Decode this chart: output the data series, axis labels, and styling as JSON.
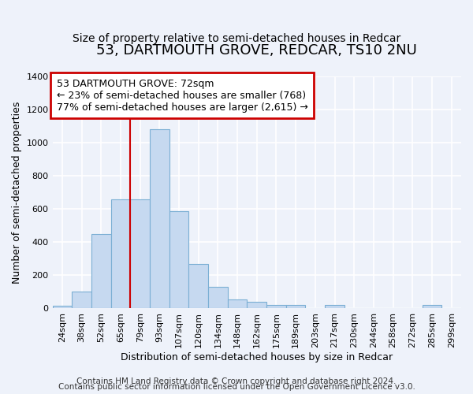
{
  "title": "53, DARTMOUTH GROVE, REDCAR, TS10 2NU",
  "subtitle": "Size of property relative to semi-detached houses in Redcar",
  "xlabel": "Distribution of semi-detached houses by size in Redcar",
  "ylabel": "Number of semi-detached properties",
  "footer1": "Contains HM Land Registry data © Crown copyright and database right 2024.",
  "footer2": "Contains public sector information licensed under the Open Government Licence v3.0.",
  "annotation_title": "53 DARTMOUTH GROVE: 72sqm",
  "annotation_line2": "← 23% of semi-detached houses are smaller (768)",
  "annotation_line3": "77% of semi-detached houses are larger (2,615) →",
  "bar_labels": [
    "24sqm",
    "38sqm",
    "52sqm",
    "65sqm",
    "79sqm",
    "93sqm",
    "107sqm",
    "120sqm",
    "134sqm",
    "148sqm",
    "162sqm",
    "175sqm",
    "189sqm",
    "203sqm",
    "217sqm",
    "230sqm",
    "244sqm",
    "258sqm",
    "272sqm",
    "285sqm",
    "299sqm"
  ],
  "bar_values": [
    15,
    100,
    450,
    660,
    660,
    1080,
    585,
    270,
    130,
    55,
    40,
    20,
    20,
    0,
    20,
    0,
    0,
    0,
    0,
    20,
    0
  ],
  "bar_color": "#c6d9f0",
  "bar_edgecolor": "#7bafd4",
  "vline_color": "#cc0000",
  "vline_x_index": 4,
  "ylim": [
    0,
    1400
  ],
  "yticks": [
    0,
    200,
    400,
    600,
    800,
    1000,
    1200,
    1400
  ],
  "background_color": "#eef2fa",
  "grid_color": "#ffffff",
  "annotation_box_facecolor": "#ffffff",
  "annotation_box_edgecolor": "#cc0000",
  "title_fontsize": 13,
  "subtitle_fontsize": 10,
  "axis_label_fontsize": 9,
  "tick_fontsize": 8,
  "annotation_fontsize": 9,
  "footer_fontsize": 7.5
}
